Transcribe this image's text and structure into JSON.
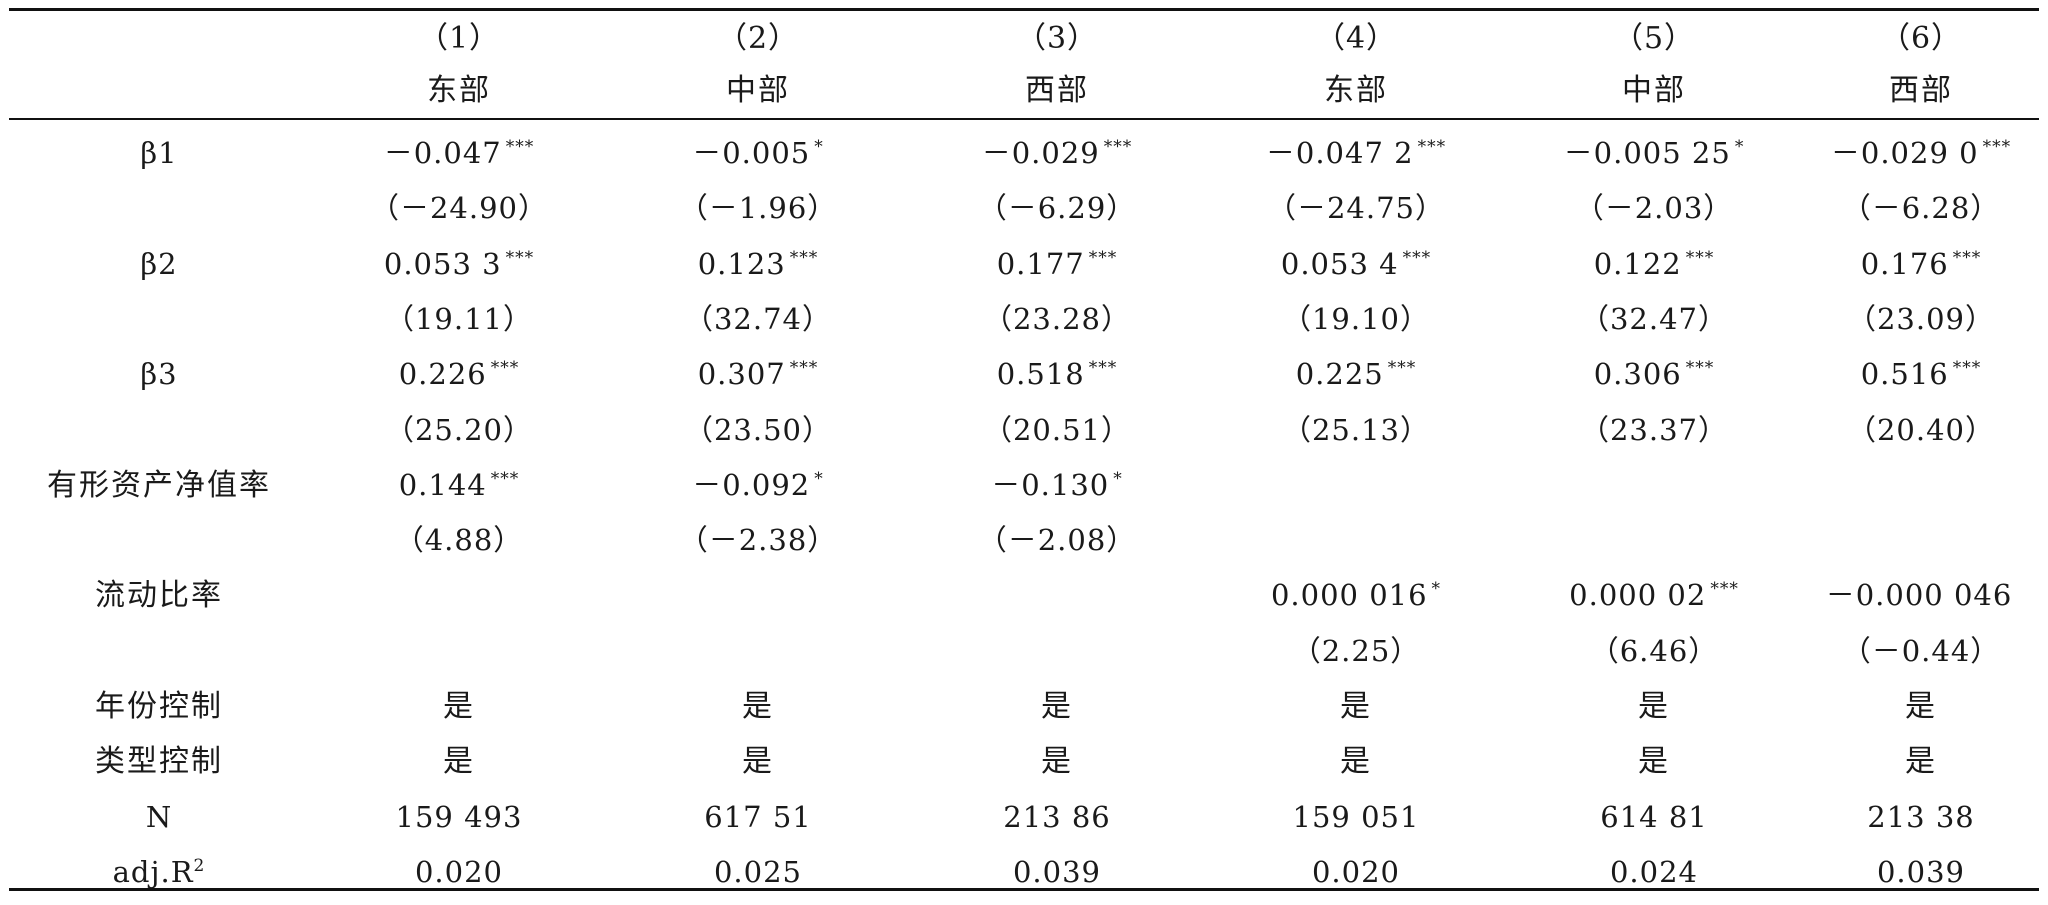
{
  "header": {
    "numbers": [
      "（1）",
      "（2）",
      "（3）",
      "（4）",
      "（5）",
      "（6）"
    ],
    "regions": [
      "东部",
      "中部",
      "西部",
      "东部",
      "中部",
      "西部"
    ]
  },
  "rows": [
    {
      "label": "β",
      "label_sub": "1",
      "coef": [
        "－0.047",
        "－0.005",
        "－0.029",
        "－0.047 2",
        "－0.005 25",
        "－0.029 0"
      ],
      "stars": [
        "***",
        "*",
        "***",
        "***",
        "*",
        "***"
      ],
      "tstat": [
        "（－24.90）",
        "（－1.96）",
        "（－6.29）",
        "（－24.75）",
        "（－2.03）",
        "（－6.28）"
      ]
    },
    {
      "label": "β",
      "label_sub": "2",
      "coef": [
        "0.053 3",
        "0.123",
        "0.177",
        "0.053 4",
        "0.122",
        "0.176"
      ],
      "stars": [
        "***",
        "***",
        "***",
        "***",
        "***",
        "***"
      ],
      "tstat": [
        "（19.11）",
        "（32.74）",
        "（23.28）",
        "（19.10）",
        "（32.47）",
        "（23.09）"
      ]
    },
    {
      "label": "β",
      "label_sub": "3",
      "coef": [
        "0.226",
        "0.307",
        "0.518",
        "0.225",
        "0.306",
        "0.516"
      ],
      "stars": [
        "***",
        "***",
        "***",
        "***",
        "***",
        "***"
      ],
      "tstat": [
        "（25.20）",
        "（23.50）",
        "（20.51）",
        "（25.13）",
        "（23.37）",
        "（20.40）"
      ]
    },
    {
      "label": "有形资产净值率",
      "label_sub": "",
      "coef": [
        "0.144",
        "－0.092",
        "－0.130",
        "",
        "",
        ""
      ],
      "stars": [
        "***",
        "*",
        "*",
        "",
        "",
        ""
      ],
      "tstat": [
        "（4.88）",
        "（－2.38）",
        "（－2.08）",
        "",
        "",
        ""
      ]
    },
    {
      "label": "流动比率",
      "label_sub": "",
      "coef": [
        "",
        "",
        "",
        "0.000 016",
        "0.000 02",
        "－0.000 046"
      ],
      "stars": [
        "",
        "",
        "",
        "*",
        "***",
        ""
      ],
      "tstat": [
        "",
        "",
        "",
        "（2.25）",
        "（6.46）",
        "（－0.44）"
      ]
    }
  ],
  "footer": [
    {
      "label": "年份控制",
      "values": [
        "是",
        "是",
        "是",
        "是",
        "是",
        "是"
      ]
    },
    {
      "label": "类型控制",
      "values": [
        "是",
        "是",
        "是",
        "是",
        "是",
        "是"
      ]
    },
    {
      "label": "N",
      "values": [
        "159 493",
        "617 51",
        "213 86",
        "159 051",
        "614 81",
        "213 38"
      ]
    },
    {
      "label": "adj.R",
      "label_sup": "2",
      "values": [
        "0.020",
        "0.025",
        "0.039",
        "0.020",
        "0.024",
        "0.039"
      ]
    }
  ]
}
